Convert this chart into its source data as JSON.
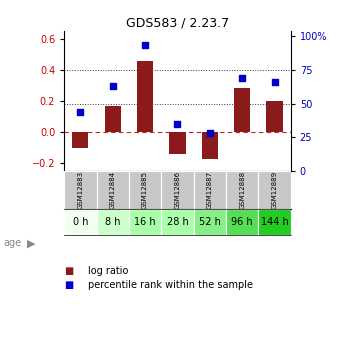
{
  "title": "GDS583 / 2.23.7",
  "samples": [
    "GSM12883",
    "GSM12884",
    "GSM12885",
    "GSM12886",
    "GSM12887",
    "GSM12888",
    "GSM12889"
  ],
  "ages": [
    "0 h",
    "8 h",
    "16 h",
    "28 h",
    "52 h",
    "96 h",
    "144 h"
  ],
  "log_ratio": [
    -0.1,
    0.17,
    0.46,
    -0.14,
    -0.17,
    0.285,
    0.2
  ],
  "percentile_rank": [
    0.44,
    0.63,
    0.94,
    0.35,
    0.28,
    0.69,
    0.66
  ],
  "ylim_left": [
    -0.25,
    0.65
  ],
  "ylim_right": [
    0.0,
    1.04
  ],
  "yticks_left": [
    -0.2,
    0.0,
    0.2,
    0.4,
    0.6
  ],
  "yticks_right": [
    0.0,
    0.25,
    0.5,
    0.75,
    1.0
  ],
  "ytick_labels_right": [
    "0",
    "25",
    "50",
    "75",
    "100%"
  ],
  "bar_color": "#8B1A1A",
  "scatter_color": "#0000CC",
  "hline_color_zero": "#CC2222",
  "dotted_line_color": "#333333",
  "age_colors": [
    "#F0FFF0",
    "#CCFFCC",
    "#AAFFAA",
    "#AAFFAA",
    "#88EE88",
    "#55DD55",
    "#22CC22"
  ],
  "gsm_bg_color": "#C8C8C8",
  "legend_bar_label": "log ratio",
  "legend_scatter_label": "percentile rank within the sample"
}
